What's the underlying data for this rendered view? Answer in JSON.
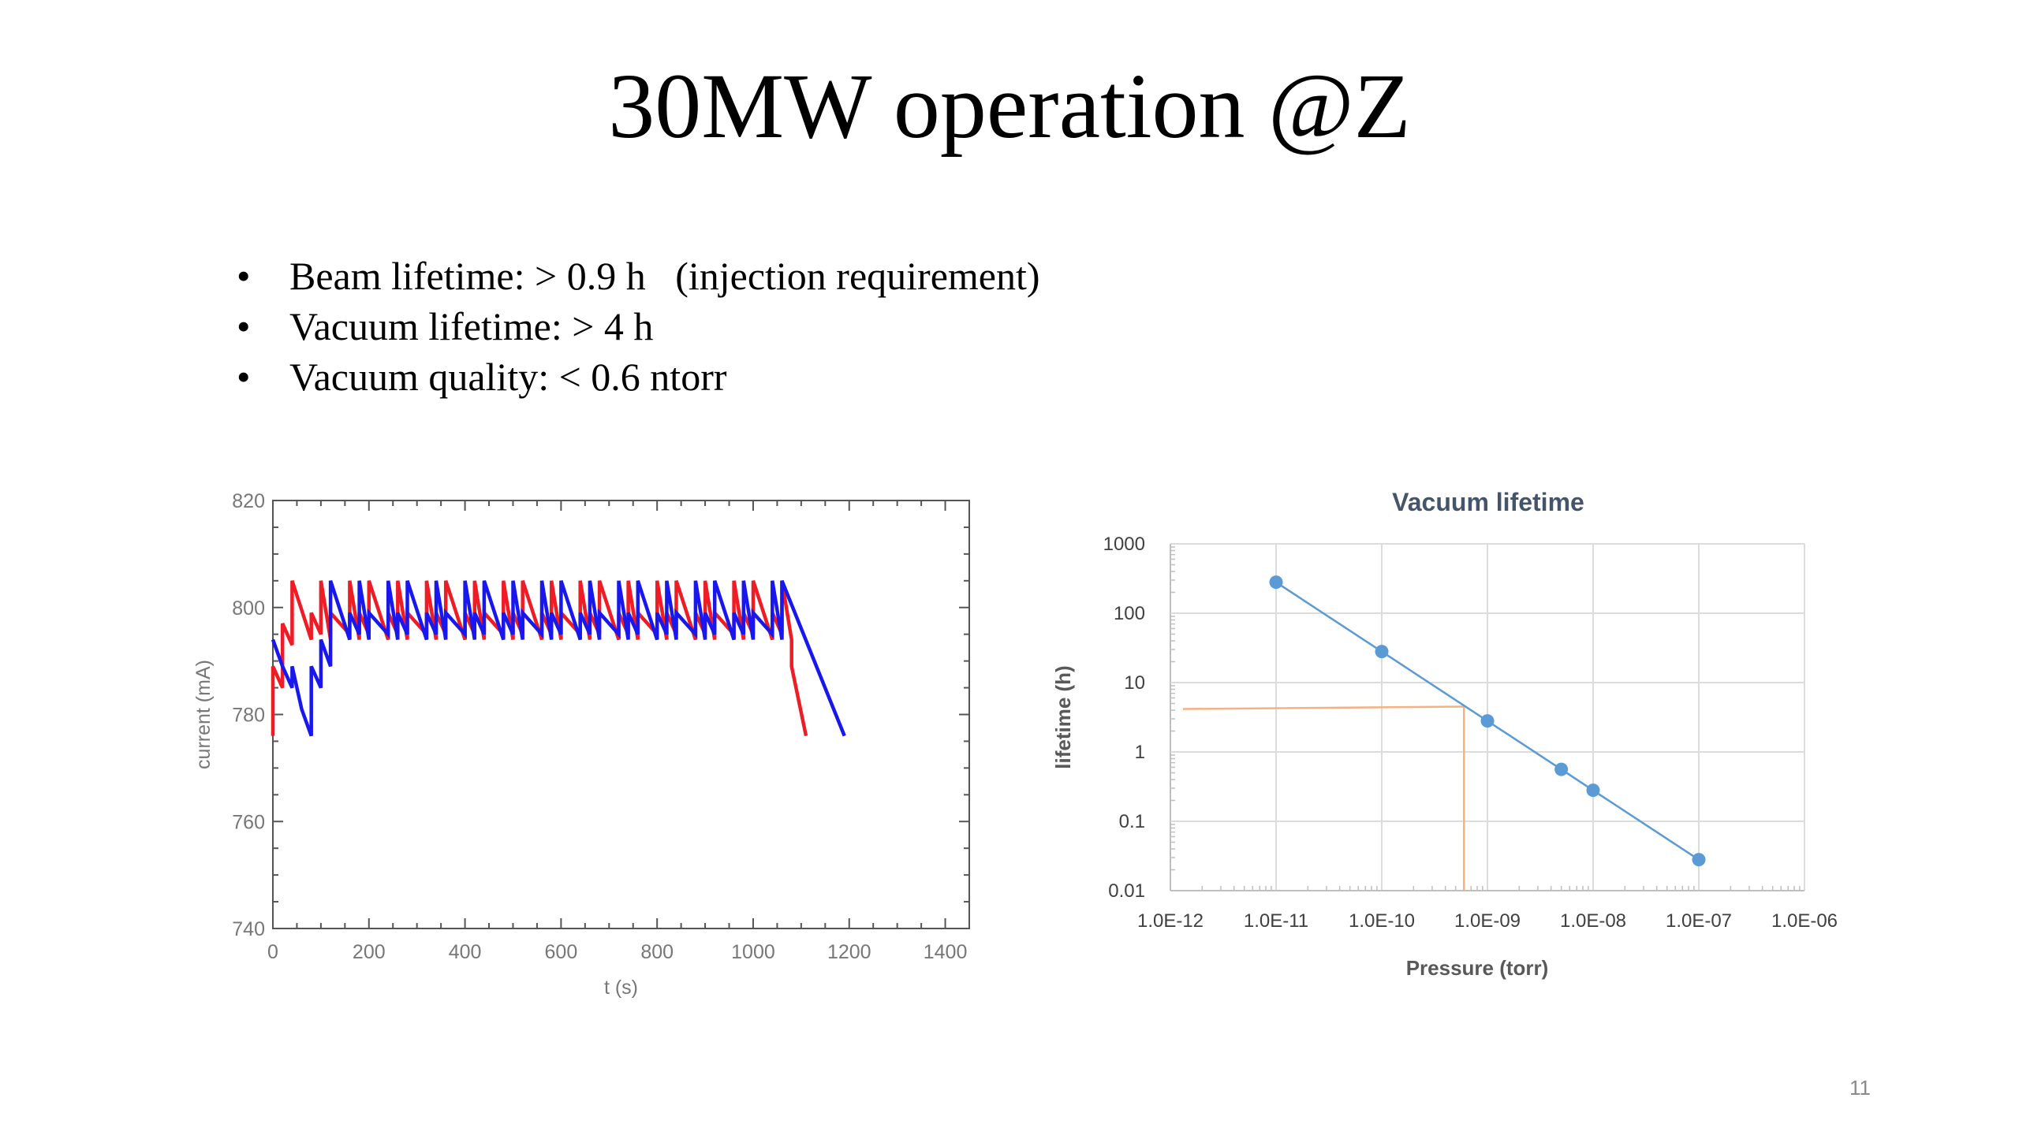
{
  "slide": {
    "title": "30MW operation @Z",
    "bullets": [
      {
        "marker": "•",
        "text": "Beam lifetime: > 0.9 h   (injection requirement)"
      },
      {
        "marker": "•",
        "text": "Vacuum lifetime: > 4 h"
      },
      {
        "marker": "•",
        "text": "Vacuum quality: < 0.6 ntorr"
      }
    ],
    "page_number": "11"
  },
  "chart_data": [
    {
      "type": "line",
      "title": "",
      "xlabel": "t (s)",
      "ylabel": "current (mA)",
      "xlim": [
        0,
        1450
      ],
      "ylim": [
        740,
        820
      ],
      "xticks": [
        0,
        200,
        400,
        600,
        800,
        1000,
        1200,
        1400
      ],
      "yticks": [
        740,
        760,
        780,
        800,
        820
      ],
      "grid": false,
      "series": [
        {
          "color": "#ee1c25",
          "x": [
            0,
            0,
            20,
            20,
            40,
            40,
            80,
            80,
            100,
            100,
            120,
            120,
            160,
            160,
            180,
            180,
            200,
            200,
            240,
            240,
            260,
            260,
            280,
            280,
            320,
            320,
            340,
            340,
            360,
            360,
            400,
            400,
            420,
            420,
            440,
            440,
            480,
            480,
            500,
            500,
            520,
            520,
            560,
            560,
            580,
            580,
            600,
            600,
            640,
            640,
            660,
            660,
            680,
            680,
            720,
            720,
            740,
            740,
            760,
            760,
            800,
            800,
            820,
            820,
            840,
            840,
            880,
            880,
            900,
            900,
            920,
            920,
            960,
            960,
            980,
            980,
            1000,
            1000,
            1040,
            1040,
            1060,
            1060,
            1080,
            1080,
            1110
          ],
          "y": [
            776,
            789,
            785,
            797,
            793,
            805,
            794,
            799,
            795,
            805,
            794,
            799,
            795,
            805,
            794,
            799,
            795,
            805,
            794,
            799,
            795,
            805,
            794,
            799,
            795,
            805,
            794,
            799,
            795,
            805,
            794,
            799,
            795,
            805,
            794,
            799,
            795,
            805,
            794,
            799,
            795,
            805,
            794,
            799,
            795,
            805,
            794,
            799,
            795,
            805,
            794,
            799,
            795,
            805,
            794,
            799,
            795,
            805,
            794,
            799,
            795,
            805,
            794,
            799,
            795,
            805,
            794,
            799,
            795,
            805,
            794,
            799,
            795,
            805,
            794,
            799,
            795,
            805,
            794,
            799,
            795,
            805,
            794,
            789,
            776
          ]
        },
        {
          "color": "#1818ee",
          "x": [
            0,
            20,
            40,
            40,
            60,
            80,
            80,
            100,
            100,
            120,
            120,
            160,
            160,
            180,
            180,
            200,
            200,
            240,
            240,
            260,
            260,
            280,
            280,
            320,
            320,
            340,
            340,
            360,
            360,
            400,
            400,
            420,
            420,
            440,
            440,
            480,
            480,
            500,
            500,
            520,
            520,
            560,
            560,
            580,
            580,
            600,
            600,
            640,
            640,
            660,
            660,
            680,
            680,
            720,
            720,
            740,
            740,
            760,
            760,
            800,
            800,
            820,
            820,
            840,
            840,
            880,
            880,
            900,
            900,
            920,
            920,
            960,
            960,
            980,
            980,
            1000,
            1000,
            1040,
            1040,
            1060,
            1060,
            1190
          ],
          "y": [
            794,
            789,
            785,
            789,
            781,
            776,
            789,
            785,
            794,
            789,
            805,
            794,
            799,
            795,
            805,
            794,
            799,
            795,
            805,
            794,
            799,
            795,
            805,
            794,
            799,
            795,
            805,
            794,
            799,
            795,
            805,
            794,
            799,
            795,
            805,
            794,
            799,
            795,
            805,
            794,
            799,
            795,
            805,
            794,
            799,
            795,
            805,
            794,
            799,
            795,
            805,
            794,
            799,
            795,
            805,
            794,
            799,
            795,
            805,
            794,
            799,
            795,
            805,
            794,
            799,
            795,
            805,
            794,
            799,
            795,
            805,
            794,
            799,
            795,
            805,
            794,
            799,
            795,
            805,
            794,
            805,
            776
          ]
        }
      ]
    },
    {
      "type": "scatter",
      "title": "Vacuum lifetime",
      "xlabel": "Pressure (torr)",
      "ylabel": "lifetime (h)",
      "xscale": "log",
      "yscale": "log",
      "xlim": [
        1e-12,
        1e-06
      ],
      "ylim": [
        0.01,
        1000
      ],
      "xtick_labels": [
        "1.0E-12",
        "1.0E-11",
        "1.0E-10",
        "1.0E-09",
        "1.0E-08",
        "1.0E-07",
        "1.0E-06"
      ],
      "ytick_labels": [
        "1000",
        "100",
        "10",
        "1",
        "0.1",
        "0.01"
      ],
      "grid": true,
      "series": [
        {
          "color": "#5b9bd5",
          "x": [
            1e-11,
            1e-10,
            1e-09,
            5e-09,
            1e-08,
            1e-07
          ],
          "y": [
            280,
            28,
            2.8,
            0.56,
            0.28,
            0.028
          ]
        }
      ],
      "annotations": [
        {
          "type": "guide-line",
          "color": "#f4b183",
          "x": 6e-10,
          "y": 4.5
        }
      ]
    }
  ]
}
